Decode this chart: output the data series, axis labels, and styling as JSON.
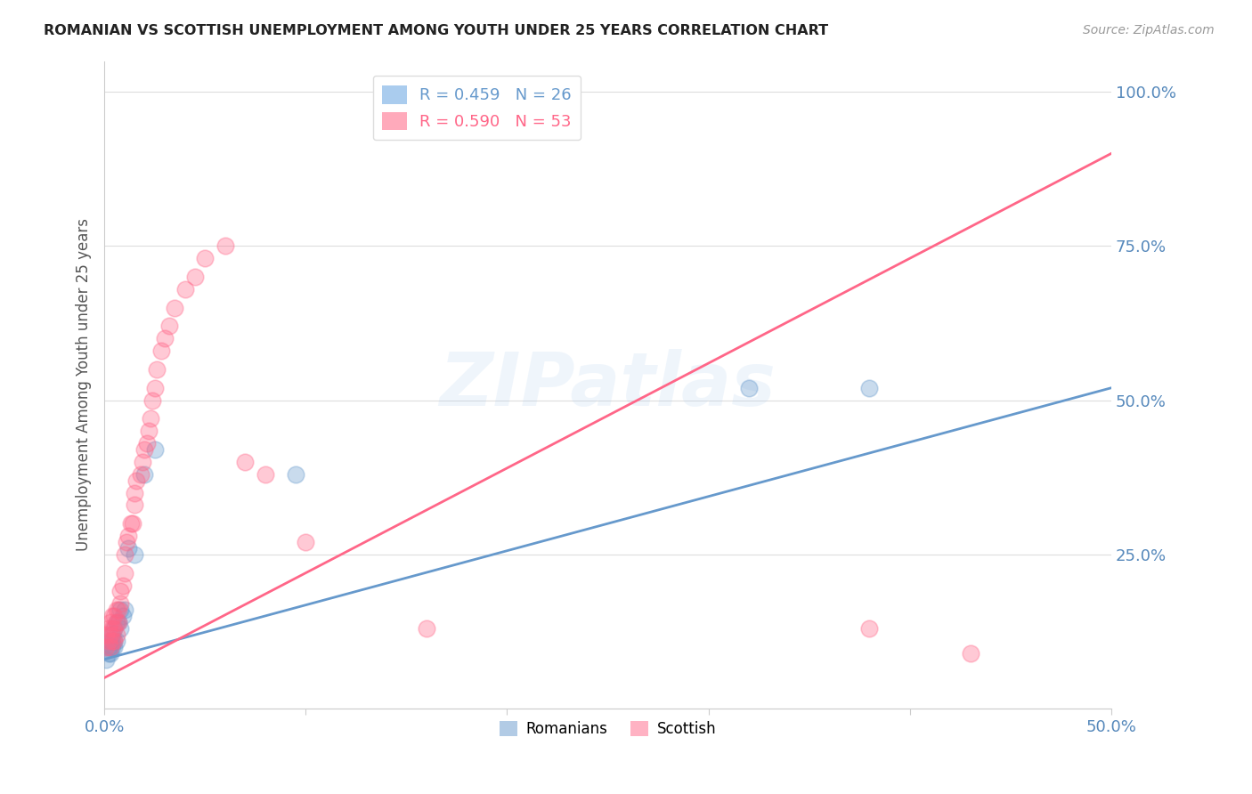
{
  "title": "ROMANIAN VS SCOTTISH UNEMPLOYMENT AMONG YOUTH UNDER 25 YEARS CORRELATION CHART",
  "source": "Source: ZipAtlas.com",
  "ylabel_label": "Unemployment Among Youth under 25 years",
  "xlim": [
    0.0,
    0.5
  ],
  "ylim": [
    0.0,
    1.05
  ],
  "romanian_color": "#6699CC",
  "scottish_color": "#FF6688",
  "background_color": "#FFFFFF",
  "grid_color": "#DDDDDD",
  "tick_color": "#5588BB",
  "watermark": "ZIPatlas",
  "ro_intercept": 0.08,
  "ro_slope": 0.88,
  "sc_intercept": 0.05,
  "sc_slope": 1.7,
  "romanians_x": [
    0.001,
    0.002,
    0.002,
    0.003,
    0.003,
    0.003,
    0.004,
    0.004,
    0.004,
    0.005,
    0.005,
    0.005,
    0.006,
    0.006,
    0.007,
    0.008,
    0.008,
    0.009,
    0.01,
    0.012,
    0.015,
    0.02,
    0.025,
    0.095,
    0.32,
    0.38
  ],
  "romanians_y": [
    0.08,
    0.09,
    0.1,
    0.09,
    0.1,
    0.11,
    0.1,
    0.11,
    0.12,
    0.1,
    0.11,
    0.13,
    0.11,
    0.14,
    0.14,
    0.13,
    0.16,
    0.15,
    0.16,
    0.26,
    0.25,
    0.38,
    0.42,
    0.38,
    0.52,
    0.52
  ],
  "scottish_x": [
    0.001,
    0.001,
    0.002,
    0.002,
    0.003,
    0.003,
    0.003,
    0.004,
    0.004,
    0.004,
    0.005,
    0.005,
    0.005,
    0.006,
    0.006,
    0.006,
    0.007,
    0.007,
    0.008,
    0.008,
    0.009,
    0.01,
    0.01,
    0.011,
    0.012,
    0.013,
    0.014,
    0.015,
    0.015,
    0.016,
    0.018,
    0.019,
    0.02,
    0.021,
    0.022,
    0.023,
    0.024,
    0.025,
    0.026,
    0.028,
    0.03,
    0.032,
    0.035,
    0.04,
    0.045,
    0.05,
    0.06,
    0.07,
    0.08,
    0.1,
    0.16,
    0.38,
    0.43
  ],
  "scottish_y": [
    0.1,
    0.12,
    0.11,
    0.13,
    0.1,
    0.12,
    0.14,
    0.11,
    0.13,
    0.15,
    0.11,
    0.13,
    0.15,
    0.12,
    0.14,
    0.16,
    0.14,
    0.16,
    0.17,
    0.19,
    0.2,
    0.22,
    0.25,
    0.27,
    0.28,
    0.3,
    0.3,
    0.33,
    0.35,
    0.37,
    0.38,
    0.4,
    0.42,
    0.43,
    0.45,
    0.47,
    0.5,
    0.52,
    0.55,
    0.58,
    0.6,
    0.62,
    0.65,
    0.68,
    0.7,
    0.73,
    0.75,
    0.4,
    0.38,
    0.27,
    0.13,
    0.13,
    0.09
  ]
}
